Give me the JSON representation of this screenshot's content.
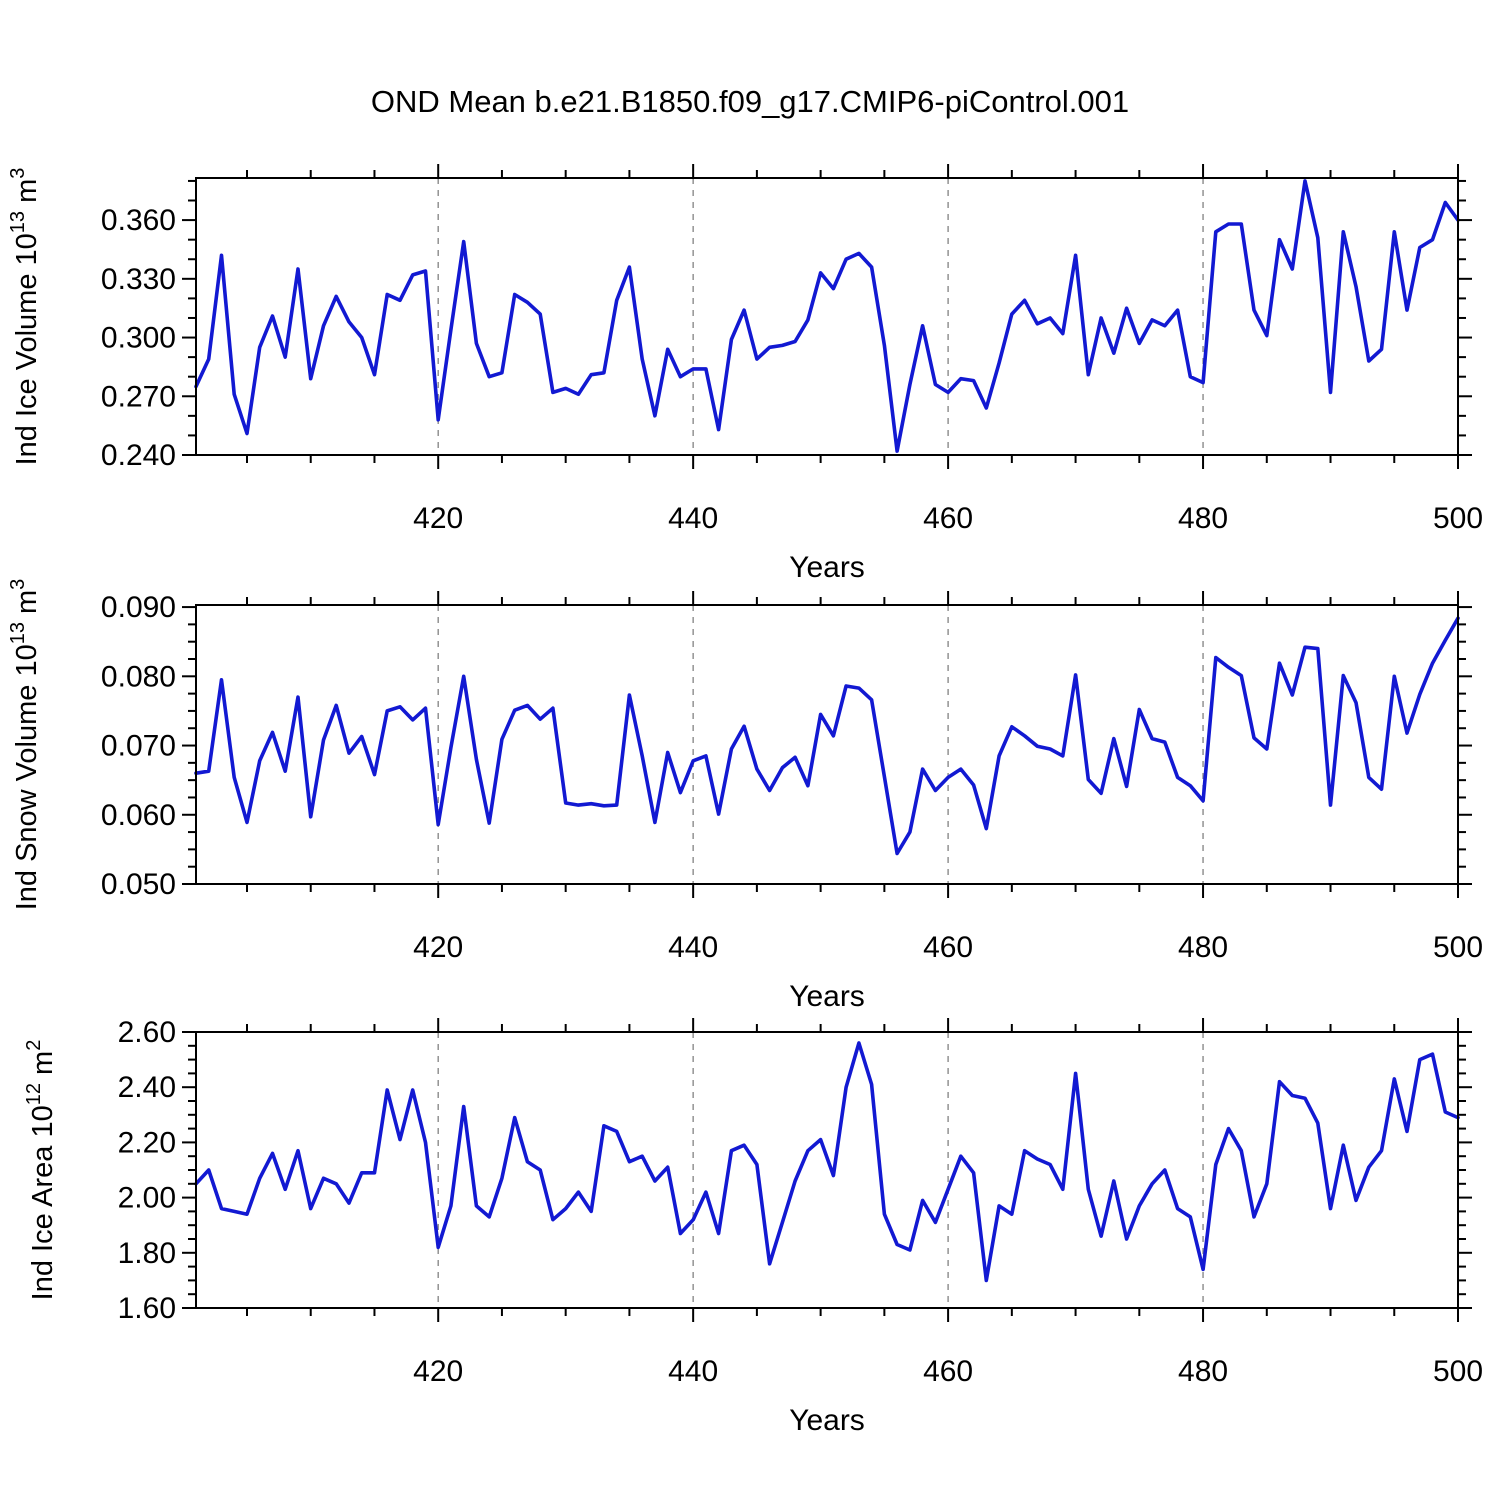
{
  "title": "OND Mean b.e21.B1850.f09_g17.CMIP6-piControl.001",
  "colors": {
    "line": "#1219d2",
    "grid": "#8a8a8a",
    "frame": "#000000",
    "text": "#000000",
    "background": "#ffffff"
  },
  "x_axis": {
    "label": "Years",
    "start": 401,
    "end": 500,
    "major_ticks": [
      420,
      440,
      460,
      480,
      500
    ],
    "minor_step": 5,
    "grid_years": [
      420,
      440,
      460,
      480
    ],
    "grid_style": "dashed"
  },
  "chart_data": [
    {
      "type": "line",
      "name": "ind-ice-volume",
      "ylabel_base": "Ind Ice Volume 10",
      "ylabel_exponent": "13",
      "ylabel_unit": " m",
      "ylabel_unit_exponent": "3",
      "ylabel_text": "Ind Ice Volume 10^13 m^3",
      "xlabel": "Years",
      "ylim": [
        0.24,
        0.3815
      ],
      "ytick_values": [
        0.24,
        0.27,
        0.3,
        0.33,
        0.36
      ],
      "ytick_labels": [
        "0.240",
        "0.270",
        "0.300",
        "0.330",
        "0.360"
      ],
      "y_minor_step": 0.01,
      "x_start_year": 401,
      "values": [
        0.275,
        0.289,
        0.342,
        0.271,
        0.251,
        0.295,
        0.311,
        0.29,
        0.335,
        0.279,
        0.306,
        0.321,
        0.308,
        0.3,
        0.281,
        0.322,
        0.319,
        0.332,
        0.334,
        0.258,
        0.304,
        0.349,
        0.297,
        0.28,
        0.282,
        0.322,
        0.318,
        0.312,
        0.272,
        0.274,
        0.271,
        0.281,
        0.282,
        0.319,
        0.336,
        0.289,
        0.26,
        0.294,
        0.28,
        0.284,
        0.284,
        0.253,
        0.299,
        0.314,
        0.289,
        0.295,
        0.296,
        0.298,
        0.309,
        0.333,
        0.325,
        0.34,
        0.343,
        0.336,
        0.296,
        0.242,
        0.276,
        0.306,
        0.276,
        0.272,
        0.279,
        0.278,
        0.264,
        0.287,
        0.312,
        0.319,
        0.307,
        0.31,
        0.302,
        0.342,
        0.281,
        0.31,
        0.292,
        0.315,
        0.297,
        0.309,
        0.306,
        0.314,
        0.28,
        0.277,
        0.354,
        0.358,
        0.358,
        0.314,
        0.301,
        0.35,
        0.335,
        0.38,
        0.351,
        0.272,
        0.354,
        0.326,
        0.288,
        0.294,
        0.354,
        0.314,
        0.346,
        0.35,
        0.369,
        0.36
      ]
    },
    {
      "type": "line",
      "name": "ind-snow-volume",
      "ylabel_base": "Ind Snow Volume 10",
      "ylabel_exponent": "13",
      "ylabel_unit": " m",
      "ylabel_unit_exponent": "3",
      "ylabel_text": "Ind Snow Volume 10^13 m^3",
      "xlabel": "Years",
      "ylim": [
        0.05,
        0.0903
      ],
      "ytick_values": [
        0.05,
        0.06,
        0.07,
        0.08,
        0.09
      ],
      "ytick_labels": [
        "0.050",
        "0.060",
        "0.070",
        "0.080",
        "0.090"
      ],
      "y_minor_step": 0.0025,
      "x_start_year": 401,
      "values": [
        0.066,
        0.0663,
        0.0795,
        0.0654,
        0.0589,
        0.0678,
        0.0719,
        0.0663,
        0.077,
        0.0597,
        0.0708,
        0.0758,
        0.0689,
        0.0713,
        0.0658,
        0.075,
        0.0756,
        0.0737,
        0.0754,
        0.0586,
        0.0697,
        0.08,
        0.068,
        0.0588,
        0.0709,
        0.0751,
        0.0758,
        0.0738,
        0.0754,
        0.0617,
        0.0614,
        0.0616,
        0.0613,
        0.0614,
        0.0773,
        0.0685,
        0.0589,
        0.069,
        0.0632,
        0.0678,
        0.0685,
        0.0601,
        0.0695,
        0.0728,
        0.0666,
        0.0635,
        0.0668,
        0.0683,
        0.0642,
        0.0745,
        0.0714,
        0.0786,
        0.0783,
        0.0766,
        0.0655,
        0.0544,
        0.0575,
        0.0666,
        0.0635,
        0.0654,
        0.0666,
        0.0643,
        0.058,
        0.0685,
        0.0727,
        0.0714,
        0.0699,
        0.0695,
        0.0685,
        0.0802,
        0.0651,
        0.0631,
        0.071,
        0.0641,
        0.0752,
        0.071,
        0.0705,
        0.0654,
        0.0642,
        0.062,
        0.0827,
        0.0813,
        0.0801,
        0.0711,
        0.0695,
        0.0819,
        0.0773,
        0.0842,
        0.084,
        0.0614,
        0.0801,
        0.0762,
        0.0654,
        0.0637,
        0.08,
        0.0718,
        0.0774,
        0.0819,
        0.0852,
        0.0884
      ]
    },
    {
      "type": "line",
      "name": "ind-ice-area",
      "ylabel_base": "Ind Ice Area 10",
      "ylabel_exponent": "12",
      "ylabel_unit": " m",
      "ylabel_unit_exponent": "2",
      "ylabel_text": "Ind Ice Area 10^12 m^2",
      "xlabel": "Years",
      "ylim": [
        1.6,
        2.6
      ],
      "ytick_values": [
        1.6,
        1.8,
        2.0,
        2.2,
        2.4,
        2.6
      ],
      "ytick_labels": [
        "1.60",
        "1.80",
        "2.00",
        "2.20",
        "2.40",
        "2.60"
      ],
      "y_minor_step": 0.05,
      "x_start_year": 401,
      "values": [
        2.05,
        2.1,
        1.96,
        1.95,
        1.94,
        2.07,
        2.16,
        2.03,
        2.17,
        1.96,
        2.07,
        2.05,
        1.98,
        2.09,
        2.09,
        2.39,
        2.21,
        2.39,
        2.2,
        1.82,
        1.97,
        2.33,
        1.97,
        1.93,
        2.07,
        2.29,
        2.13,
        2.1,
        1.92,
        1.96,
        2.02,
        1.95,
        2.26,
        2.24,
        2.13,
        2.15,
        2.06,
        2.11,
        1.87,
        1.92,
        2.02,
        1.87,
        2.17,
        2.19,
        2.12,
        1.76,
        1.91,
        2.06,
        2.17,
        2.21,
        2.08,
        2.4,
        2.56,
        2.41,
        1.94,
        1.83,
        1.81,
        1.99,
        1.91,
        2.03,
        2.15,
        2.09,
        1.7,
        1.97,
        1.94,
        2.17,
        2.14,
        2.12,
        2.03,
        2.45,
        2.03,
        1.86,
        2.06,
        1.85,
        1.97,
        2.05,
        2.1,
        1.96,
        1.93,
        1.74,
        2.12,
        2.25,
        2.17,
        1.93,
        2.05,
        2.42,
        2.37,
        2.36,
        2.27,
        1.96,
        2.19,
        1.99,
        2.11,
        2.17,
        2.43,
        2.24,
        2.5,
        2.52,
        2.31,
        2.29
      ]
    }
  ]
}
